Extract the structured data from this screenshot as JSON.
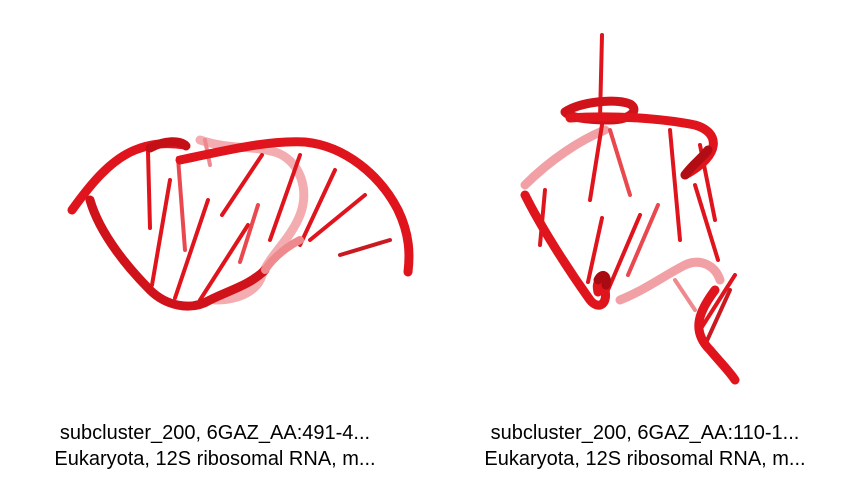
{
  "panels": [
    {
      "caption_line1": "subcluster_200, 6GAZ_AA:491-4...",
      "caption_line2": "Eukaryota, 12S ribosomal RNA, m..."
    },
    {
      "caption_line1": "subcluster_200, 6GAZ_AA:110-1...",
      "caption_line2": "Eukaryota, 12S ribosomal RNA, m..."
    }
  ],
  "colors": {
    "backbone": "#e0141c",
    "backbone_dark": "#b00d14",
    "faded": "#ee8a8e"
  }
}
